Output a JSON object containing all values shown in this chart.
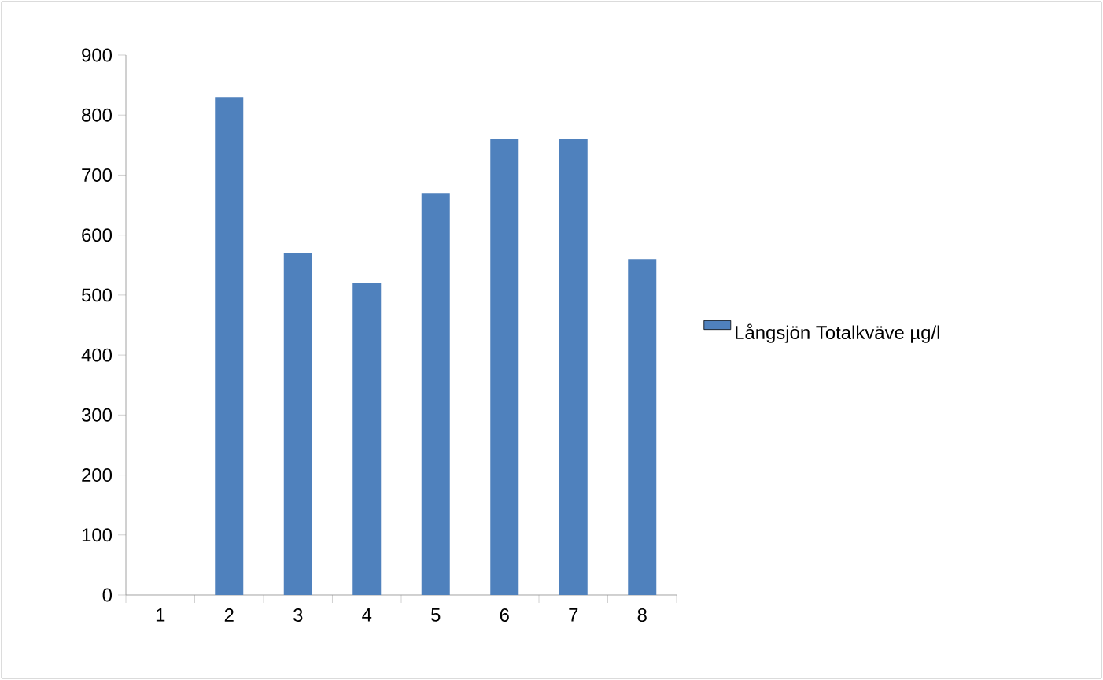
{
  "chart_data": {
    "type": "bar",
    "categories": [
      "1",
      "2",
      "3",
      "4",
      "5",
      "6",
      "7",
      "8"
    ],
    "series": [
      {
        "name": "Långsjön Totalkväve µg/l",
        "color": "#4f81bd",
        "values": [
          null,
          830,
          570,
          520,
          670,
          760,
          760,
          560
        ]
      }
    ],
    "ylim": [
      0,
      900
    ],
    "yticks": [
      0,
      100,
      200,
      300,
      400,
      500,
      600,
      700,
      800,
      900
    ],
    "legend": "right"
  }
}
